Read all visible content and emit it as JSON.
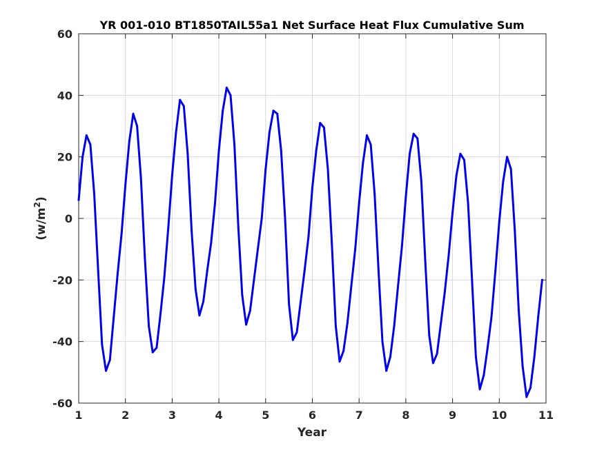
{
  "chart_data": {
    "type": "line",
    "title": "YR 001-010 BT1850TAIL55a1 Net Surface Heat Flux  Cumulative Sum",
    "xlabel": "Year",
    "ylabel": "(w/m",
    "ylabel_sup": "2",
    "ylabel_close": ")",
    "xlim": [
      1,
      11
    ],
    "ylim": [
      -60,
      60
    ],
    "xticks": [
      1,
      2,
      3,
      4,
      5,
      6,
      7,
      8,
      9,
      10,
      11
    ],
    "yticks": [
      -60,
      -40,
      -20,
      0,
      20,
      40,
      60
    ],
    "xtick_labels": [
      "1",
      "2",
      "3",
      "4",
      "5",
      "6",
      "7",
      "8",
      "9",
      "10",
      "11"
    ],
    "ytick_labels": [
      "-60",
      "-40",
      "-20",
      "0",
      "20",
      "40",
      "60"
    ],
    "grid": true,
    "series": [
      {
        "color": "#0000ee",
        "x": [
          1.0,
          1.083,
          1.167,
          1.25,
          1.333,
          1.417,
          1.5,
          1.583,
          1.667,
          1.75,
          1.833,
          1.917,
          2.0,
          2.083,
          2.167,
          2.25,
          2.333,
          2.417,
          2.5,
          2.583,
          2.667,
          2.75,
          2.833,
          2.917,
          3.0,
          3.083,
          3.167,
          3.25,
          3.333,
          3.417,
          3.5,
          3.583,
          3.667,
          3.75,
          3.833,
          3.917,
          4.0,
          4.083,
          4.167,
          4.25,
          4.333,
          4.417,
          4.5,
          4.583,
          4.667,
          4.75,
          4.833,
          4.917,
          5.0,
          5.083,
          5.167,
          5.25,
          5.333,
          5.417,
          5.5,
          5.583,
          5.667,
          5.75,
          5.833,
          5.917,
          6.0,
          6.083,
          6.167,
          6.25,
          6.333,
          6.417,
          6.5,
          6.583,
          6.667,
          6.75,
          6.833,
          6.917,
          7.0,
          7.083,
          7.167,
          7.25,
          7.333,
          7.417,
          7.5,
          7.583,
          7.667,
          7.75,
          7.833,
          7.917,
          8.0,
          8.083,
          8.167,
          8.25,
          8.333,
          8.417,
          8.5,
          8.583,
          8.667,
          8.75,
          8.833,
          8.917,
          9.0,
          9.083,
          9.167,
          9.25,
          9.333,
          9.417,
          9.5,
          9.583,
          9.667,
          9.75,
          9.833,
          9.917,
          10.0,
          10.083,
          10.167,
          10.25,
          10.333,
          10.417,
          10.5,
          10.583,
          10.667,
          10.75,
          10.833,
          10.917
        ],
        "y": [
          6,
          20,
          27,
          24,
          8,
          -17,
          -41,
          -49.5,
          -46,
          -32,
          -18,
          -5,
          11,
          25,
          34,
          30,
          13,
          -13,
          -35,
          -43.5,
          -42,
          -31,
          -19,
          -3,
          14,
          28,
          38.5,
          36.5,
          21,
          -4,
          -23,
          -31.5,
          -27,
          -17,
          -8,
          5,
          22,
          35,
          42.5,
          40,
          24,
          -3,
          -25,
          -34.5,
          -30,
          -20,
          -10,
          0,
          16,
          28,
          35,
          34,
          22,
          0,
          -28,
          -39.5,
          -37,
          -27,
          -17,
          -6,
          10,
          22,
          31,
          29.5,
          16,
          -8,
          -35,
          -46.5,
          -43,
          -34,
          -22,
          -10,
          5,
          18,
          27,
          24,
          8,
          -17,
          -40,
          -49.5,
          -45,
          -35,
          -22,
          -9,
          7,
          21,
          27.5,
          26,
          12,
          -14,
          -38,
          -47,
          -44,
          -34,
          -24,
          -12,
          2,
          14,
          21,
          19,
          5,
          -20,
          -45,
          -55.5,
          -51,
          -42,
          -32,
          -17,
          -1,
          12,
          20,
          16,
          -4,
          -30,
          -48,
          -58,
          -55,
          -45,
          -32,
          -20
        ]
      }
    ]
  }
}
